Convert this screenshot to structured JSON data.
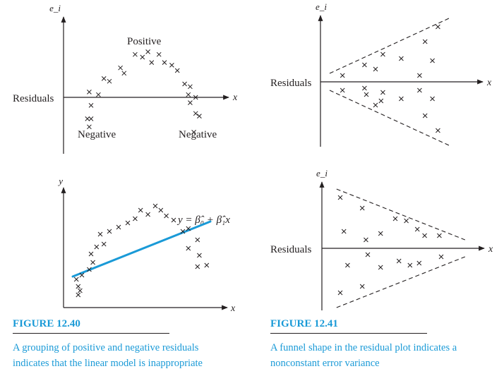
{
  "figures": [
    {
      "title": "FIGURE 12.40",
      "caption": "A grouping of positive and negative residuals indicates that the linear model is inappropriate"
    },
    {
      "title": "FIGURE 12.41",
      "caption": "A funnel shape in the residual plot indicates a nonconstant error variance"
    }
  ],
  "colors": {
    "ink": "#231f20",
    "accent": "#1a9ad7"
  },
  "chart_data": [
    {
      "type": "scatter",
      "title": "",
      "xlabel": "x",
      "ylabel": "e_i",
      "axis_side_label": "Residuals",
      "annotations": [
        "Positive",
        "Negative",
        "Negative"
      ],
      "xlim": [
        0,
        10
      ],
      "ylim": [
        -3,
        3
      ],
      "series": [
        {
          "values": [
            [
              1.4,
              0.2
            ],
            [
              1.5,
              -0.3
            ],
            [
              1.3,
              -0.8
            ],
            [
              1.5,
              -0.8
            ],
            [
              1.4,
              -1.1
            ],
            [
              1.9,
              0.1
            ],
            [
              2.2,
              0.7
            ],
            [
              2.5,
              0.6
            ],
            [
              3.1,
              1.1
            ],
            [
              3.3,
              0.9
            ],
            [
              3.9,
              1.6
            ],
            [
              4.3,
              1.5
            ],
            [
              4.6,
              1.7
            ],
            [
              4.8,
              1.3
            ],
            [
              5.2,
              1.6
            ],
            [
              5.5,
              1.3
            ],
            [
              5.9,
              1.2
            ],
            [
              6.2,
              1.0
            ],
            [
              6.6,
              0.5
            ],
            [
              6.9,
              0.4
            ],
            [
              6.8,
              0.1
            ],
            [
              7.2,
              0.0
            ],
            [
              6.9,
              -0.2
            ],
            [
              7.2,
              -0.6
            ],
            [
              7.4,
              -0.7
            ],
            [
              7.1,
              -1.3
            ]
          ]
        }
      ]
    },
    {
      "type": "scatter",
      "title": "",
      "xlabel": "x",
      "ylabel": "e_i",
      "axis_side_label": "Residuals",
      "xlim": [
        0,
        10
      ],
      "ylim": [
        -3,
        3
      ],
      "series": [
        {
          "values": [
            [
              1.2,
              0.3
            ],
            [
              2.4,
              0.8
            ],
            [
              3.0,
              0.6
            ],
            [
              3.4,
              1.3
            ],
            [
              4.4,
              1.1
            ],
            [
              5.7,
              1.9
            ],
            [
              6.4,
              2.6
            ],
            [
              5.4,
              0.3
            ],
            [
              6.1,
              1.0
            ],
            [
              1.2,
              -0.4
            ],
            [
              2.4,
              -0.3
            ],
            [
              2.5,
              -0.6
            ],
            [
              3.3,
              -0.9
            ],
            [
              3.4,
              -0.5
            ],
            [
              3.0,
              -1.1
            ],
            [
              4.4,
              -0.8
            ],
            [
              5.4,
              -0.4
            ],
            [
              6.1,
              -0.8
            ],
            [
              5.7,
              -1.6
            ],
            [
              6.4,
              -2.3
            ]
          ]
        }
      ],
      "guides": [
        {
          "style": "dashed",
          "x": [
            0.5,
            7.0
          ],
          "y": [
            0.4,
            3.0
          ]
        },
        {
          "style": "dashed",
          "x": [
            0.5,
            7.0
          ],
          "y": [
            -0.4,
            -3.0
          ]
        }
      ]
    },
    {
      "type": "scatter",
      "title": "",
      "xlabel": "x",
      "ylabel": "y",
      "annotations": [
        "y = β̂₀ + β̂₁x"
      ],
      "xlim": [
        0,
        10
      ],
      "ylim": [
        0,
        10
      ],
      "series": [
        {
          "values": [
            [
              0.7,
              2.0
            ],
            [
              0.8,
              1.5
            ],
            [
              0.9,
              1.2
            ],
            [
              0.8,
              0.9
            ],
            [
              1.0,
              2.3
            ],
            [
              1.4,
              2.7
            ],
            [
              1.6,
              3.2
            ],
            [
              1.5,
              3.8
            ],
            [
              1.8,
              4.3
            ],
            [
              2.0,
              5.2
            ],
            [
              2.2,
              4.5
            ],
            [
              2.5,
              5.4
            ],
            [
              3.0,
              5.7
            ],
            [
              3.5,
              6.0
            ],
            [
              3.9,
              6.3
            ],
            [
              4.2,
              6.9
            ],
            [
              4.6,
              6.6
            ],
            [
              5.0,
              7.2
            ],
            [
              5.3,
              6.9
            ],
            [
              5.6,
              6.5
            ],
            [
              6.0,
              6.2
            ],
            [
              6.5,
              5.4
            ],
            [
              6.8,
              5.6
            ],
            [
              6.8,
              4.2
            ],
            [
              7.3,
              4.8
            ],
            [
              7.4,
              3.7
            ],
            [
              7.3,
              2.9
            ],
            [
              7.8,
              3.0
            ]
          ]
        },
        {
          "type": "line",
          "x": [
            0.5,
            8.0
          ],
          "y": [
            2.2,
            6.1
          ]
        }
      ]
    },
    {
      "type": "scatter",
      "title": "",
      "xlabel": "x",
      "ylabel": "e_i",
      "axis_side_label": "Residuals",
      "xlim": [
        0,
        10
      ],
      "ylim": [
        -3,
        3
      ],
      "series": [
        {
          "values": [
            [
              1.0,
              2.4
            ],
            [
              2.2,
              1.9
            ],
            [
              1.2,
              0.8
            ],
            [
              2.4,
              0.4
            ],
            [
              3.2,
              0.7
            ],
            [
              4.0,
              1.4
            ],
            [
              4.6,
              1.3
            ],
            [
              5.2,
              0.9
            ],
            [
              5.6,
              0.6
            ],
            [
              6.4,
              0.6
            ],
            [
              2.5,
              -0.3
            ],
            [
              1.4,
              -0.8
            ],
            [
              3.2,
              -0.9
            ],
            [
              4.2,
              -0.6
            ],
            [
              4.8,
              -0.8
            ],
            [
              5.3,
              -0.7
            ],
            [
              6.5,
              -0.4
            ],
            [
              1.0,
              -2.1
            ],
            [
              2.2,
              -1.8
            ]
          ]
        }
      ],
      "guides": [
        {
          "style": "dashed",
          "x": [
            0.8,
            7.8
          ],
          "y": [
            2.8,
            0.4
          ]
        },
        {
          "style": "dashed",
          "x": [
            0.8,
            7.8
          ],
          "y": [
            -2.8,
            -0.4
          ]
        }
      ]
    }
  ]
}
